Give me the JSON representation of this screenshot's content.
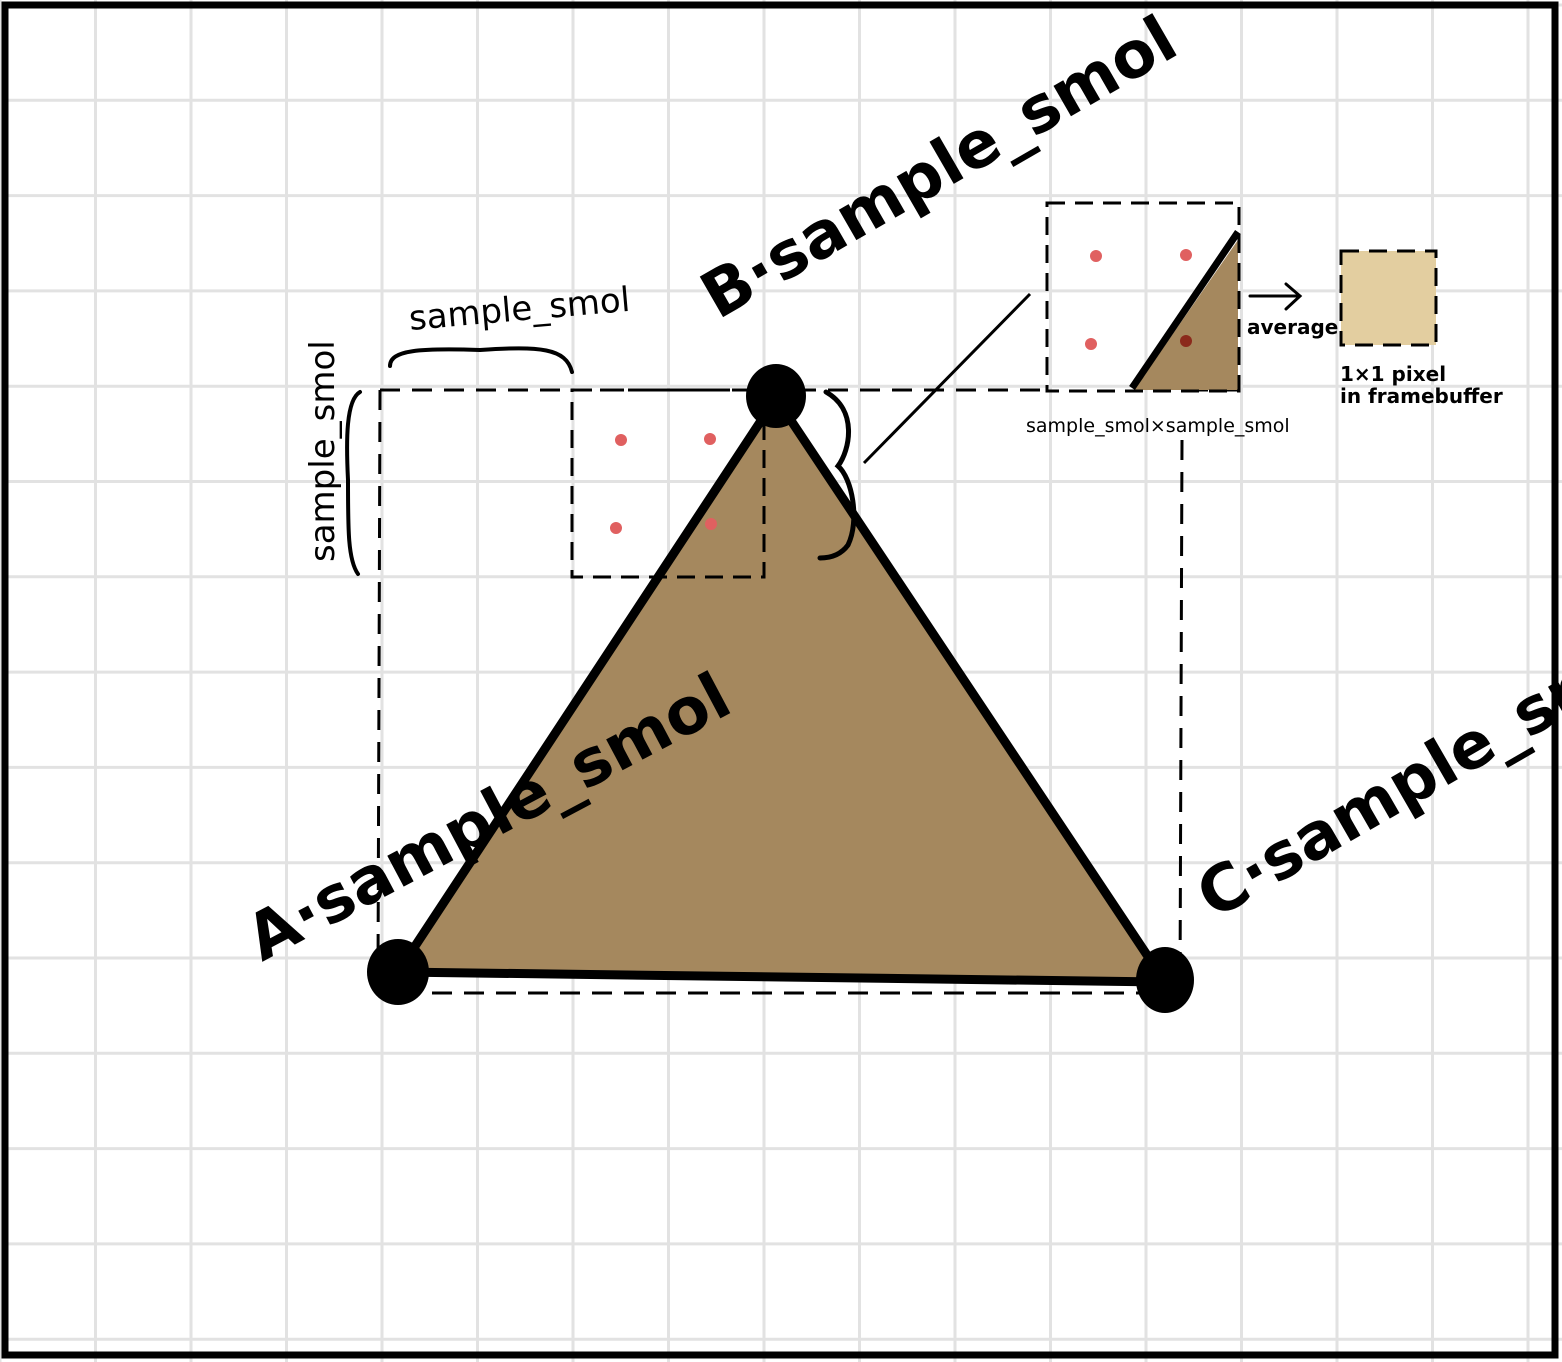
{
  "vertices": {
    "a": "A·sample_smol",
    "b": "B·sample_smol",
    "c": "C·sample_smol"
  },
  "brace_top_label": "sample_smol",
  "brace_left_label": "sample_smol",
  "zoom_caption": "sample_smol×sample_smol",
  "average_label": "average",
  "pixel_caption_line1": "1×1 pixel",
  "pixel_caption_line2": "in framebuffer",
  "colors": {
    "triangle_fill": "#a5885e",
    "sample_dot": "#e06060",
    "sample_dot_inside": "#8b2a1c",
    "pixel_fill": "#e3cea0",
    "grid": "#e2e2e2",
    "stroke": "#000000"
  }
}
